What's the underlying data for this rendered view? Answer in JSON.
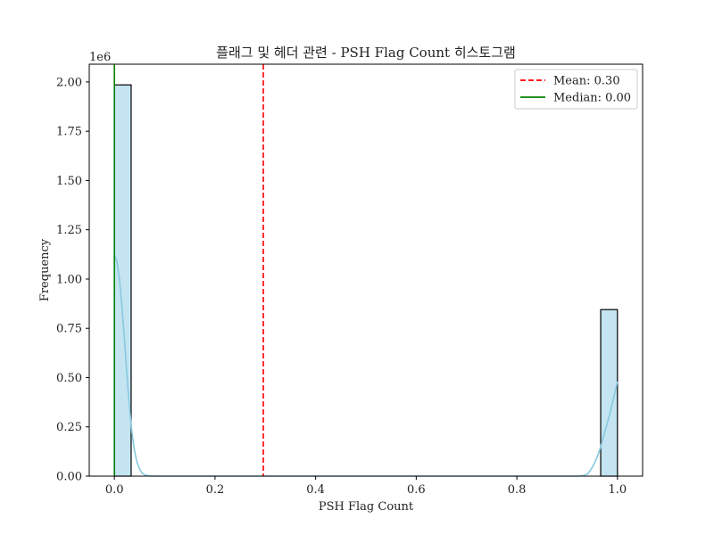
{
  "chart_data": {
    "type": "bar",
    "title": "플래그 및 헤더 관련 - PSH Flag Count 히스토그램",
    "xlabel": "PSH Flag Count",
    "ylabel": "Frequency",
    "y_offset_label": "1e6",
    "xlim": [
      -0.05,
      1.05
    ],
    "ylim": [
      0,
      2.09
    ],
    "x_ticks": [
      0.0,
      0.2,
      0.4,
      0.6,
      0.8,
      1.0
    ],
    "x_tick_labels": [
      "0.0",
      "0.2",
      "0.4",
      "0.6",
      "0.8",
      "1.0"
    ],
    "y_ticks": [
      0,
      0.25,
      0.5,
      0.75,
      1.0,
      1.25,
      1.5,
      1.75,
      2.0
    ],
    "y_tick_labels": [
      "0.00",
      "0.25",
      "0.50",
      "0.75",
      "1.00",
      "1.25",
      "1.50",
      "1.75",
      "2.00"
    ],
    "bins": [
      {
        "x0": 0.0,
        "x1": 0.0333,
        "value": 1.985
      },
      {
        "x0": 0.9667,
        "x1": 1.0,
        "value": 0.845
      }
    ],
    "kde": [
      [
        0.0,
        1.12
      ],
      [
        0.005,
        1.09
      ],
      [
        0.01,
        1.0
      ],
      [
        0.015,
        0.86
      ],
      [
        0.02,
        0.69
      ],
      [
        0.025,
        0.51
      ],
      [
        0.03,
        0.35
      ],
      [
        0.035,
        0.22
      ],
      [
        0.04,
        0.13
      ],
      [
        0.045,
        0.07
      ],
      [
        0.05,
        0.035
      ],
      [
        0.055,
        0.016
      ],
      [
        0.06,
        0.007
      ],
      [
        0.07,
        0.001
      ],
      [
        0.08,
        0.0
      ],
      [
        0.92,
        0.0
      ],
      [
        0.93,
        0.002
      ],
      [
        0.94,
        0.01
      ],
      [
        0.945,
        0.025
      ],
      [
        0.95,
        0.045
      ],
      [
        0.955,
        0.07
      ],
      [
        0.96,
        0.1
      ],
      [
        0.965,
        0.135
      ],
      [
        0.97,
        0.18
      ],
      [
        0.975,
        0.225
      ],
      [
        0.98,
        0.27
      ],
      [
        0.985,
        0.32
      ],
      [
        0.99,
        0.37
      ],
      [
        0.995,
        0.425
      ],
      [
        1.0,
        0.48
      ]
    ],
    "lines": [
      {
        "name": "Mean: 0.30",
        "x": 0.296,
        "color": "#ff0000",
        "style": "dashed"
      },
      {
        "name": "Median: 0.00",
        "x": 0.0,
        "color": "#008000",
        "style": "solid"
      }
    ],
    "bar_fill": "#c3e4f0",
    "bar_edge": "#000000",
    "kde_color": "#88c9e0",
    "grid": false,
    "legend_position": "top-right"
  }
}
